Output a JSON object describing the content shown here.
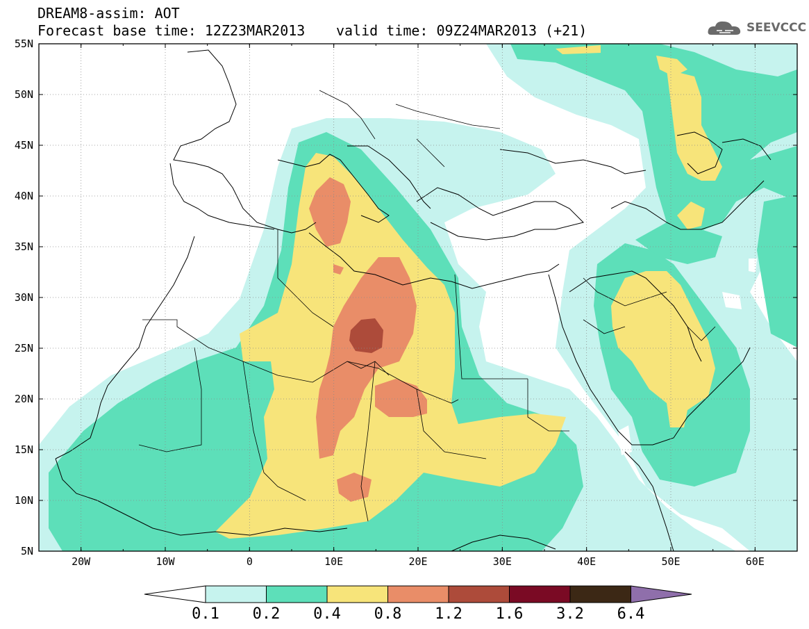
{
  "title": {
    "line1": "DREAM8-assim: AOT",
    "line2": "Forecast base time: 12Z23MAR2013",
    "valid": "valid time: 09Z24MAR2013 (+21)"
  },
  "logo": {
    "text": "SEEVCCC",
    "icon": "cloud-logo-icon"
  },
  "axes": {
    "lat_labels": [
      "55N",
      "50N",
      "45N",
      "40N",
      "35N",
      "30N",
      "25N",
      "20N",
      "15N",
      "10N",
      "5N"
    ],
    "lon_labels": [
      "20W",
      "10W",
      "0",
      "10E",
      "20E",
      "30E",
      "40E",
      "50E",
      "60E"
    ],
    "lat_range": [
      5,
      55
    ],
    "lon_range": [
      -25,
      65
    ]
  },
  "colorbar": {
    "labels": [
      "0.1",
      "0.2",
      "0.4",
      "0.8",
      "1.2",
      "1.6",
      "3.2",
      "6.4"
    ],
    "colors": [
      "#ffffff",
      "#c6f3ee",
      "#5ddfb9",
      "#f7e47a",
      "#e98d68",
      "#ad4b3a",
      "#7a0a24",
      "#3c2815",
      "#8f6fab"
    ]
  }
}
